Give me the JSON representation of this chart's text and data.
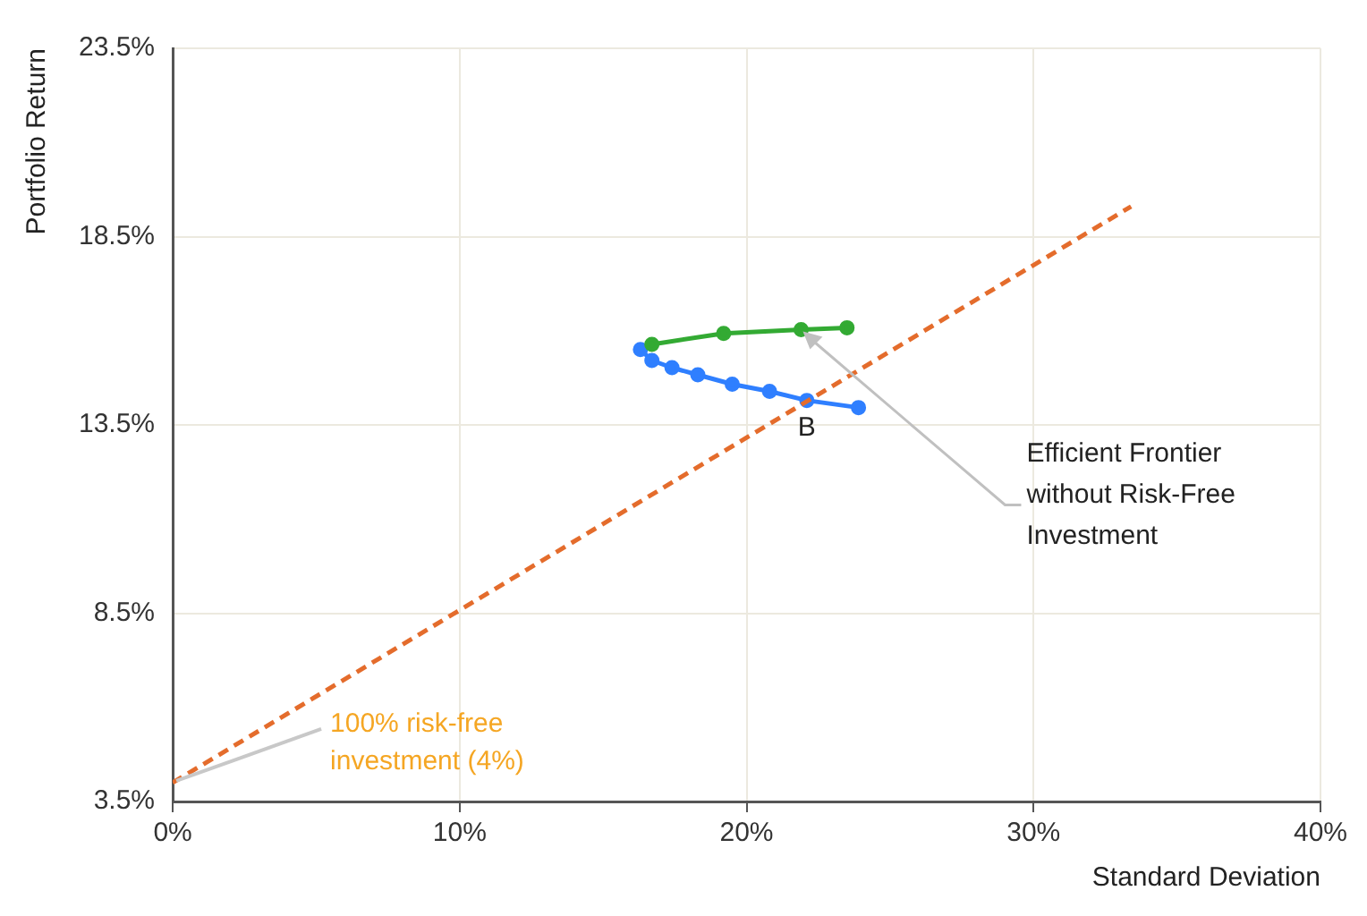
{
  "chart_data": {
    "type": "line",
    "xlabel": "Standard Deviation",
    "ylabel": "Portfolio Return",
    "xlim": [
      0,
      40
    ],
    "xticks": [
      {
        "value": 0,
        "label": "0%"
      },
      {
        "value": 10,
        "label": "10%"
      },
      {
        "value": 20,
        "label": "20%"
      },
      {
        "value": 30,
        "label": "30%"
      },
      {
        "value": 40,
        "label": "40%"
      }
    ],
    "ylim": [
      3.5,
      23.5
    ],
    "yticks": [
      {
        "value": 3.5,
        "label": "3.5%"
      },
      {
        "value": 8.5,
        "label": "8.5%"
      },
      {
        "value": 13.5,
        "label": "13.5%"
      },
      {
        "value": 18.5,
        "label": "18.5%"
      },
      {
        "value": 23.5,
        "label": "23.5%"
      }
    ],
    "grid": true,
    "legend": false,
    "series": [
      {
        "color": "#e46c2c",
        "x": [
          0,
          33.4
        ],
        "values": [
          4.0,
          19.3
        ],
        "line_style": "dashed",
        "marker": "none"
      },
      {
        "color": "#33aa33",
        "x": [
          16.7,
          19.2,
          21.9,
          23.5
        ],
        "values": [
          15.64,
          15.93,
          16.03,
          16.08
        ],
        "line_style": "solid",
        "marker": "circle"
      },
      {
        "color": "#2f7fff",
        "x": [
          16.3,
          16.7,
          17.4,
          18.3,
          19.5,
          20.8,
          22.1,
          23.9
        ],
        "values": [
          15.5,
          15.21,
          15.02,
          14.83,
          14.58,
          14.39,
          14.15,
          13.96
        ],
        "line_style": "solid",
        "marker": "circle"
      }
    ],
    "annotations": [
      {
        "text": "B",
        "x": 22.1,
        "y": 14.15
      },
      {
        "text": "100% risk-free investment (4%)",
        "x": 0,
        "y": 4.0
      },
      {
        "text": "Efficient Frontier without Risk-Free Investment",
        "x": 21.9,
        "y": 16.03
      }
    ]
  }
}
